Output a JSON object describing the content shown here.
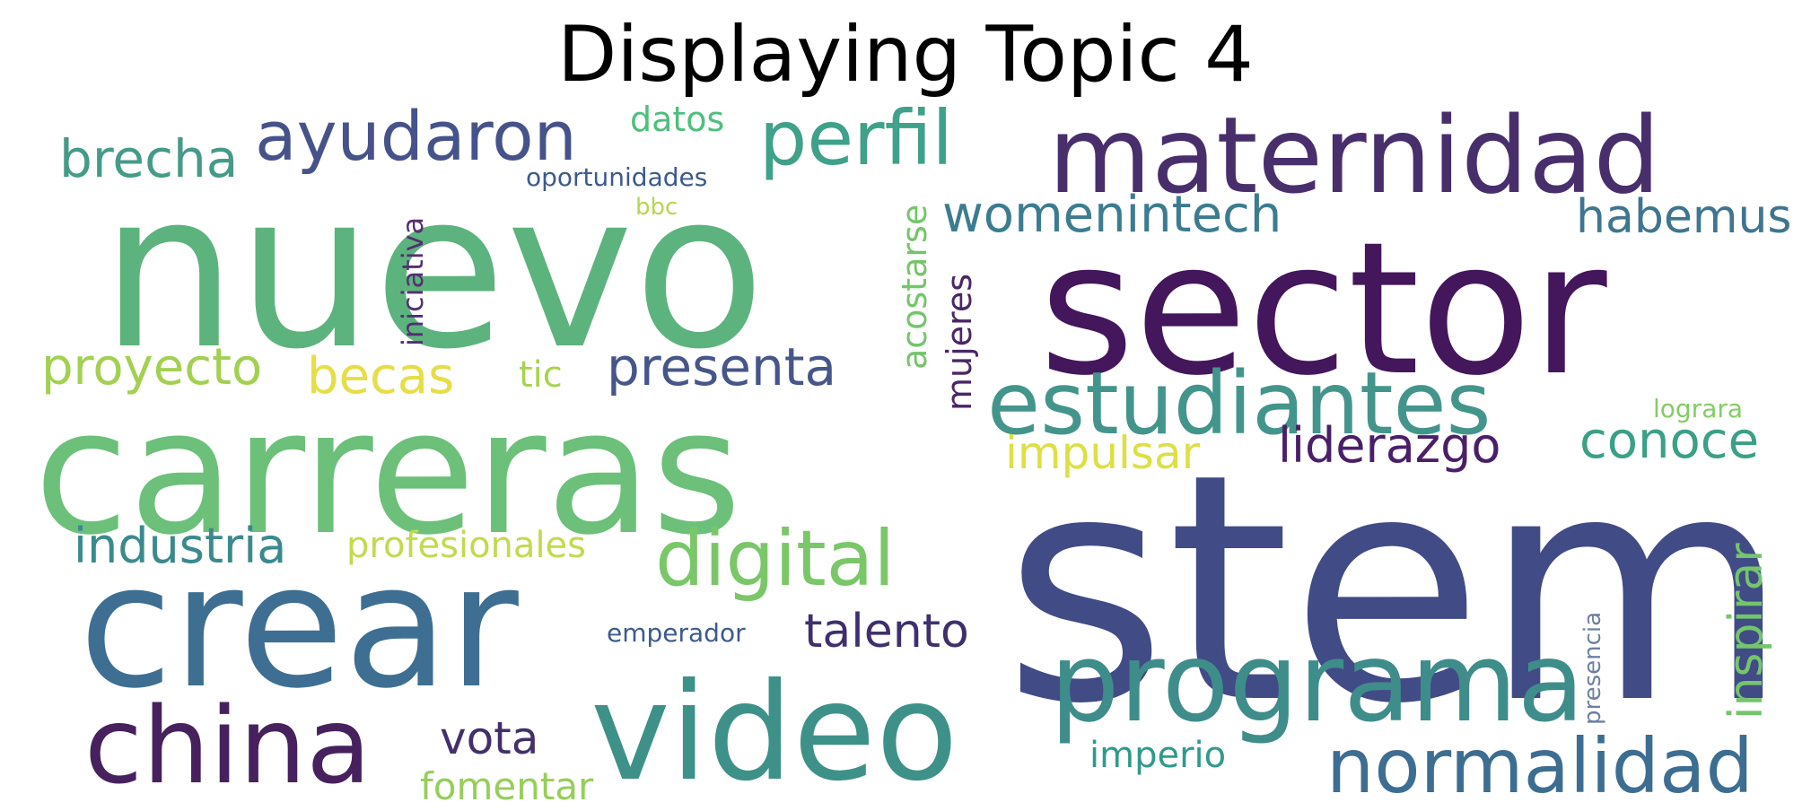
{
  "title": "Displaying Topic 4",
  "words": {
    "nuevo": "nuevo",
    "sector": "sector",
    "carreras": "carreras",
    "stem": "stem",
    "crear": "crear",
    "maternidad": "maternidad",
    "video": "video",
    "programa": "programa",
    "estudiantes": "estudiantes",
    "china": "china",
    "normalidad": "normalidad",
    "digital": "digital",
    "ayudaron": "ayudaron",
    "perfil": "perfil",
    "presenta": "presenta",
    "womenintech": "womenintech",
    "brecha": "brecha",
    "proyecto": "proyecto",
    "becas": "becas",
    "industria": "industria",
    "conoce": "conoce",
    "liderazgo": "liderazgo",
    "talento": "talento",
    "habemus": "habemus",
    "impulsar": "impulsar",
    "vota": "vota",
    "inspirar": "inspirar",
    "profesionales": "profesionales",
    "acostarse": "acostarse",
    "mujeres": "mujeres",
    "fomentar": "fomentar",
    "imperio": "imperio",
    "datos": "datos",
    "tic": "tic",
    "iniciativa": "iniciativa",
    "oportunidades": "oportunidades",
    "emperador": "emperador",
    "presencia": "presencia",
    "lograra": "lograra",
    "bbc": "bbc"
  },
  "colors": {
    "nuevo": "#5db37e",
    "sector": "#44165b",
    "carreras": "#6cc07a",
    "stem": "#414b86",
    "crear": "#3e6f92",
    "maternidad": "#482f6c",
    "video": "#3e9188",
    "programa": "#3f8d8b",
    "estudiantes": "#43958c",
    "china": "#46215e",
    "normalidad": "#3e6d92",
    "digital": "#7ac769",
    "ayudaron": "#46538a",
    "perfil": "#3fa18a",
    "presenta": "#46558a",
    "womenintech": "#3c7c90",
    "brecha": "#459a88",
    "proyecto": "#a3d052",
    "becas": "#e6de46",
    "industria": "#3a8a8d",
    "conoce": "#3aa086",
    "liderazgo": "#4a1f6a",
    "talento": "#3f2f6e",
    "habemus": "#3f7590",
    "impulsar": "#dde044",
    "vota": "#432f6b",
    "inspirar": "#74c56c",
    "profesionales": "#c2da4e",
    "acostarse": "#74c56a",
    "mujeres": "#4a2667",
    "fomentar": "#96ce5a",
    "imperio": "#2f9a8c",
    "datos": "#4fbf7c",
    "tic": "#a6d44e",
    "iniciativa": "#552e70",
    "oportunidades": "#3c5a8c",
    "emperador": "#3e5a8d",
    "presencia": "#6d7fa3",
    "lograra": "#83cd64",
    "bbc": "#b5d654"
  }
}
